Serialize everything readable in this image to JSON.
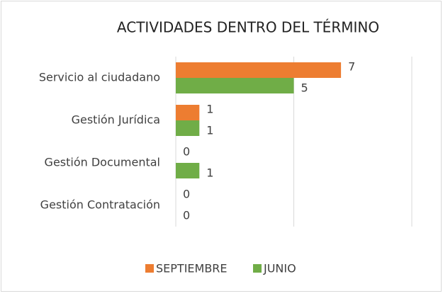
{
  "chart_data": {
    "type": "hbar",
    "title": "ACTIVIDADES DENTRO DEL TÉRMINO",
    "categories": [
      "Servicio al ciudadano",
      "Gestión Jurídica",
      "Gestión Documental",
      "Gestión Contratación"
    ],
    "series": [
      {
        "name": "SEPTIEMBRE",
        "color": "#ed7d31",
        "values": [
          7,
          1,
          0,
          0
        ]
      },
      {
        "name": "JUNIO",
        "color": "#70ad47",
        "values": [
          5,
          1,
          1,
          0
        ]
      }
    ],
    "xlim": [
      0,
      10
    ],
    "xticks": [
      0,
      5,
      10
    ],
    "grid": true,
    "legend": "bottom"
  }
}
